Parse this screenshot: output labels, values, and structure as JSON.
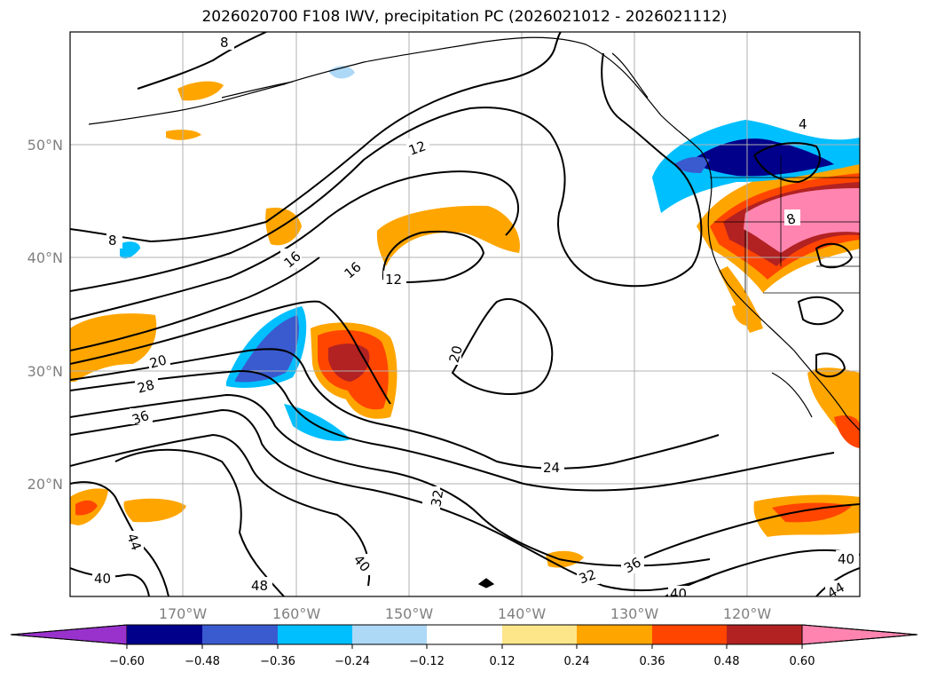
{
  "title": "2026020700 F108 IWV, precipitation PC (2026021012 - 2026021112)",
  "map": {
    "lat_labels": [
      "50°N",
      "40°N",
      "30°N",
      "20°N"
    ],
    "lon_labels": [
      "170°W",
      "160°W",
      "150°W",
      "140°W",
      "130°W",
      "120°W"
    ],
    "contour_labels": [
      "8",
      "8",
      "12",
      "12",
      "16",
      "16",
      "20",
      "20",
      "20",
      "24",
      "28",
      "32",
      "32",
      "36",
      "36",
      "40",
      "40",
      "40",
      "40",
      "44",
      "44",
      "48",
      "8",
      "4"
    ],
    "land_color": "#000000",
    "grid": true
  },
  "colorbar": {
    "ticks": [
      "−0.60",
      "−0.48",
      "−0.36",
      "−0.24",
      "−0.12",
      "0.12",
      "0.24",
      "0.36",
      "0.48",
      "0.60"
    ],
    "colors": [
      "#9932cc",
      "#00008b",
      "#3a5bcf",
      "#00bfff",
      "#add8f6",
      "#ffffff",
      "#fde68a",
      "#ffa500",
      "#ff4500",
      "#b22222",
      "#ff85b0"
    ]
  }
}
